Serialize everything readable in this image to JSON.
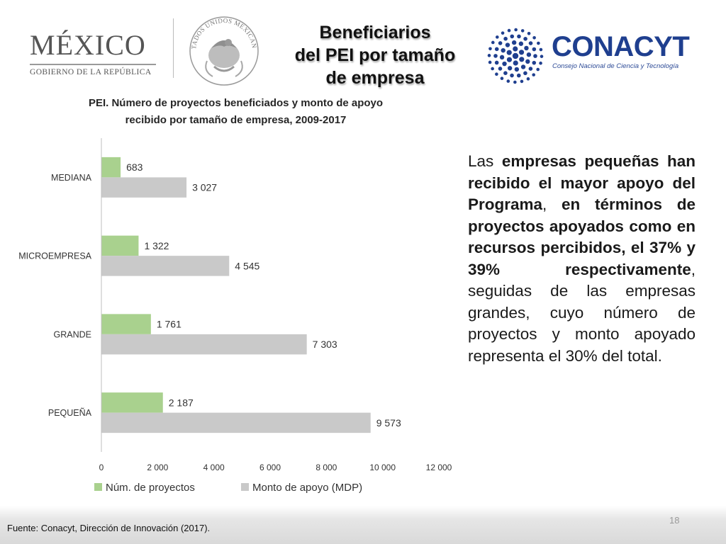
{
  "header": {
    "mexico_logo": {
      "word": "MÉXICO",
      "subtitle": "GOBIERNO DE LA REPÚBLICA"
    },
    "seal_text": "ESTADOS UNIDOS MEXICANOS",
    "title_lines": [
      "Beneficiarios",
      "del PEI por tamaño",
      "de empresa"
    ],
    "conacyt_logo": {
      "name": "CONACYT",
      "tagline": "Consejo Nacional de Ciencia y Tecnología"
    }
  },
  "chart_data": {
    "type": "bar",
    "orientation": "horizontal",
    "title_lines": [
      "PEI. Número de proyectos beneficiados y monto de apoyo",
      "recibido por tamaño de empresa, 2009-2017"
    ],
    "categories": [
      "MEDIANA",
      "MICROEMPRESA",
      "GRANDE",
      "PEQUEÑA"
    ],
    "series": [
      {
        "name": "Núm. de proyectos",
        "color": "#a9d18e",
        "values": [
          683,
          1322,
          1761,
          2187
        ],
        "labels": [
          "683",
          "1 322",
          "1 761",
          "2 187"
        ]
      },
      {
        "name": "Monto de apoyo (MDP)",
        "color": "#c9c9c9",
        "values": [
          3027,
          4545,
          7303,
          9573
        ],
        "labels": [
          "3 027",
          "4 545",
          "7 303",
          "9 573"
        ]
      }
    ],
    "xlim": [
      0,
      12000
    ],
    "xticks": [
      0,
      2000,
      4000,
      6000,
      8000,
      10000,
      12000
    ],
    "xtick_labels": [
      "0",
      "2 000",
      "4 000",
      "6 000",
      "8 000",
      "10 000",
      "12 000"
    ],
    "grid": false,
    "legend_position": "bottom"
  },
  "body_text": {
    "p1": "Las ",
    "b1": "empresas pequeñas han recibido el mayor apoyo del Programa",
    "p2": ", ",
    "b2": "en términos de proyectos apoyados como en recursos percibidos, el 37% y 39% respectivamente",
    "p3": ", seguidas de las empresas grandes, cuyo número de proyectos y monto apoyado representa el 30% del total."
  },
  "footer": {
    "source": "Fuente: Conacyt, Dirección de Innovación (2017).",
    "page_number": "18"
  }
}
